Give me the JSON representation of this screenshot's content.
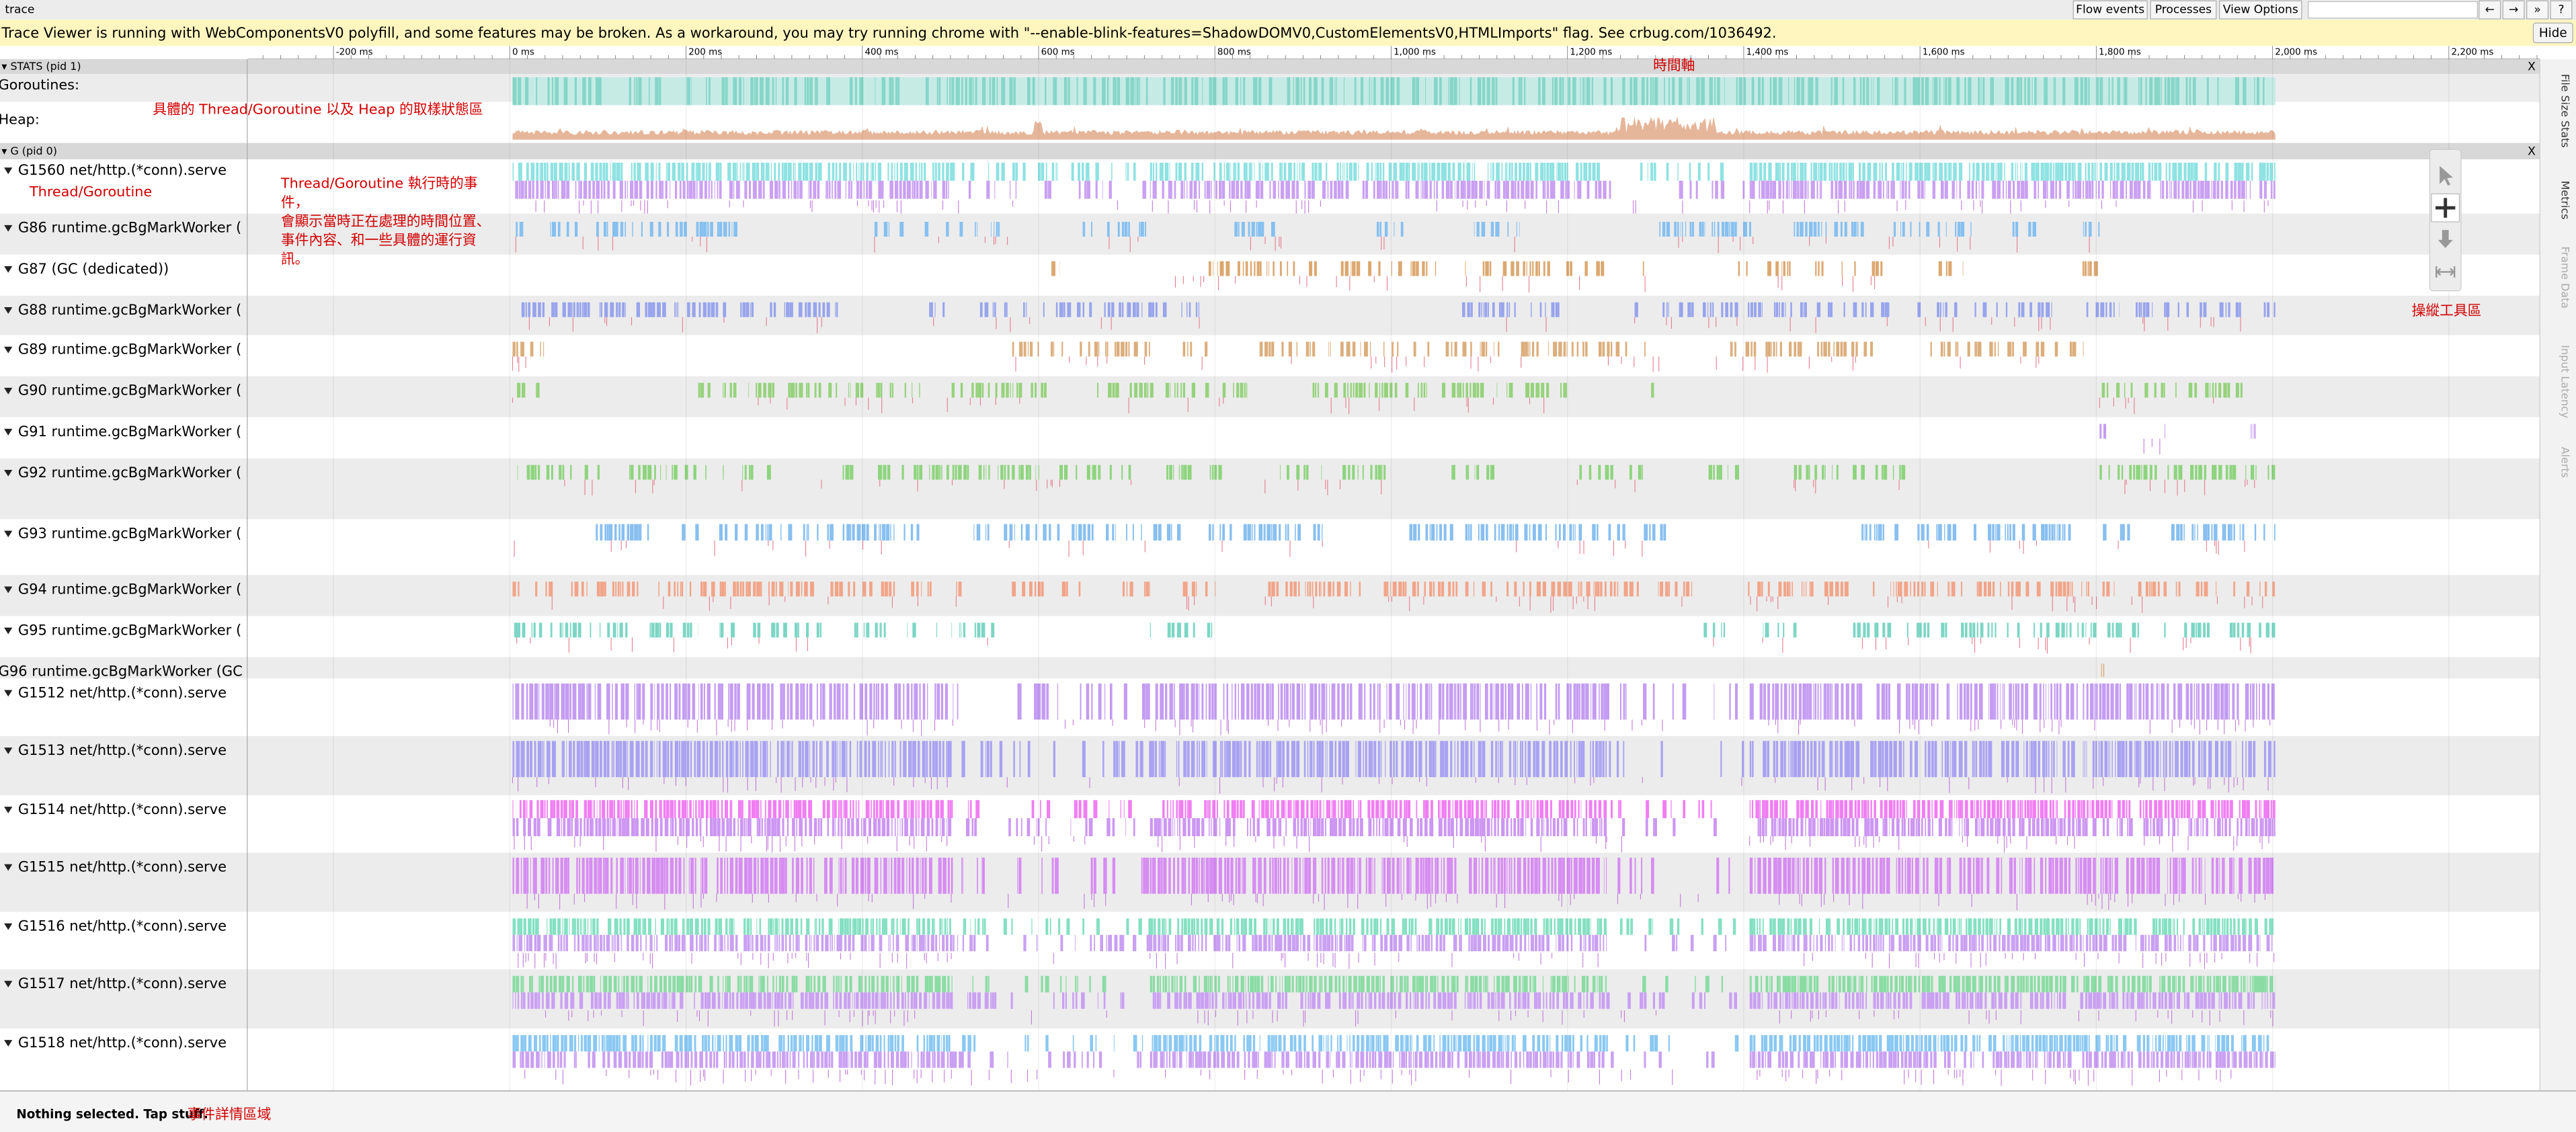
{
  "toolbar": {
    "title": "trace",
    "buttons": [
      "Flow events",
      "Processes",
      "View Options"
    ],
    "nav": [
      "←",
      "→",
      "»",
      "?"
    ]
  },
  "banner": {
    "text": "Trace Viewer is running with WebComponentsV0 polyfill, and some features may be broken. As a workaround, you may try running chrome with \"--enable-blink-features=ShadowDOMV0,CustomElementsV0,HTMLImports\" flag. See crbug.com/1036492.",
    "button": "Hide"
  },
  "ruler": {
    "labels": [
      "-200 ms",
      "0 ms",
      "200 ms",
      "400 ms",
      "600 ms",
      "800 ms",
      "1,000 ms",
      "1,200 ms",
      "1,400 ms",
      "1,600 ms",
      "1,800 ms",
      "2,000 ms",
      "2,200 ms"
    ]
  },
  "processes": [
    {
      "header": "▾ STATS (pid 1)",
      "close": "X",
      "rows": [
        "Goroutines:",
        "Heap:"
      ]
    },
    {
      "header": "▾ G (pid 0)",
      "close": "X",
      "rows": [
        "G1560 net/http.(*conn).serve",
        "G86 runtime.gcBgMarkWorker (",
        "G87 (GC (dedicated))",
        "G88 runtime.gcBgMarkWorker (",
        "G89 runtime.gcBgMarkWorker (",
        "G90 runtime.gcBgMarkWorker (",
        "G91 runtime.gcBgMarkWorker (",
        "G92 runtime.gcBgMarkWorker (",
        "G93 runtime.gcBgMarkWorker (",
        "G94 runtime.gcBgMarkWorker (",
        "G95 runtime.gcBgMarkWorker (",
        "G96 runtime.gcBgMarkWorker (GC",
        "G1512 net/http.(*conn).serve",
        "G1513 net/http.(*conn).serve",
        "G1514 net/http.(*conn).serve",
        "G1515 net/http.(*conn).serve",
        "G1516 net/http.(*conn).serve",
        "G1517 net/http.(*conn).serve",
        "G1518 net/http.(*conn).serve"
      ]
    }
  ],
  "side_tabs": [
    "File Size Stats",
    "Metrics",
    "Frame Data",
    "Input Latency",
    "Alerts"
  ],
  "status": "Nothing selected. Tap stuff.",
  "annotations": {
    "timeline": "時間軸",
    "stats": "具體的 Thread/Goroutine 以及 Heap 的取樣狀態區",
    "thread": "Thread/Goroutine",
    "events": [
      "Thread/Goroutine 執行時的事",
      "件，",
      "會顯示當時正在處理的時間位置、",
      "事件內容、和一些具體的運行資",
      "訊。"
    ],
    "tools": "操縱工具區",
    "details": "事件詳情區域"
  }
}
